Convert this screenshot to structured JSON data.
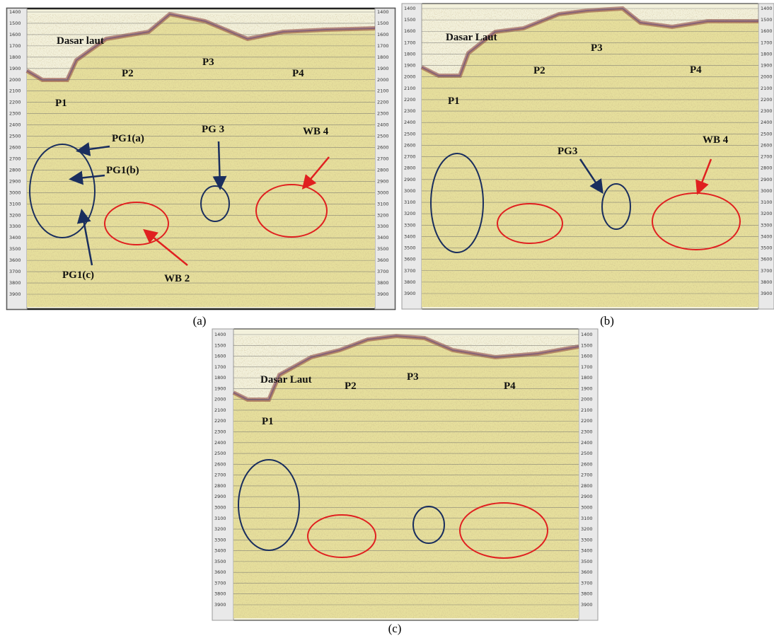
{
  "panels": [
    {
      "caption": "(a)",
      "depth_ticks": [
        1400,
        1500,
        1600,
        1700,
        1800,
        1900,
        2000,
        2100,
        2200,
        2300,
        2400,
        2500,
        2600,
        2700,
        2800,
        2900,
        3000,
        3100,
        3200,
        3300,
        3400,
        3500,
        3600,
        3700,
        3800,
        3900
      ],
      "labels": [
        "Dasar laut",
        "P2",
        "P3",
        "P4",
        "P1",
        "PG1(a)",
        "PG1(b)",
        "PG1(c)",
        "PG 3",
        "WB 4",
        "WB 2"
      ]
    },
    {
      "caption": "(b)",
      "depth_ticks": [
        1400,
        1500,
        1600,
        1700,
        1800,
        1900,
        2000,
        2100,
        2200,
        2300,
        2400,
        2500,
        2600,
        2700,
        2800,
        2900,
        3000,
        3100,
        3200,
        3300,
        3400,
        3500,
        3600,
        3700,
        3800,
        3900
      ],
      "labels": [
        "Dasar Laut",
        "P3",
        "P2",
        "P4",
        "P1",
        "PG3",
        "WB 4"
      ]
    },
    {
      "caption": "(c)",
      "depth_ticks": [
        1400,
        1500,
        1600,
        1700,
        1800,
        1900,
        2000,
        2100,
        2200,
        2300,
        2400,
        2500,
        2600,
        2700,
        2800,
        2900,
        3000,
        3100,
        3200,
        3300,
        3400,
        3500,
        3600,
        3700,
        3800,
        3900
      ],
      "labels": [
        "Dasar Laut",
        "P2",
        "P3",
        "P4",
        "P1"
      ]
    }
  ]
}
